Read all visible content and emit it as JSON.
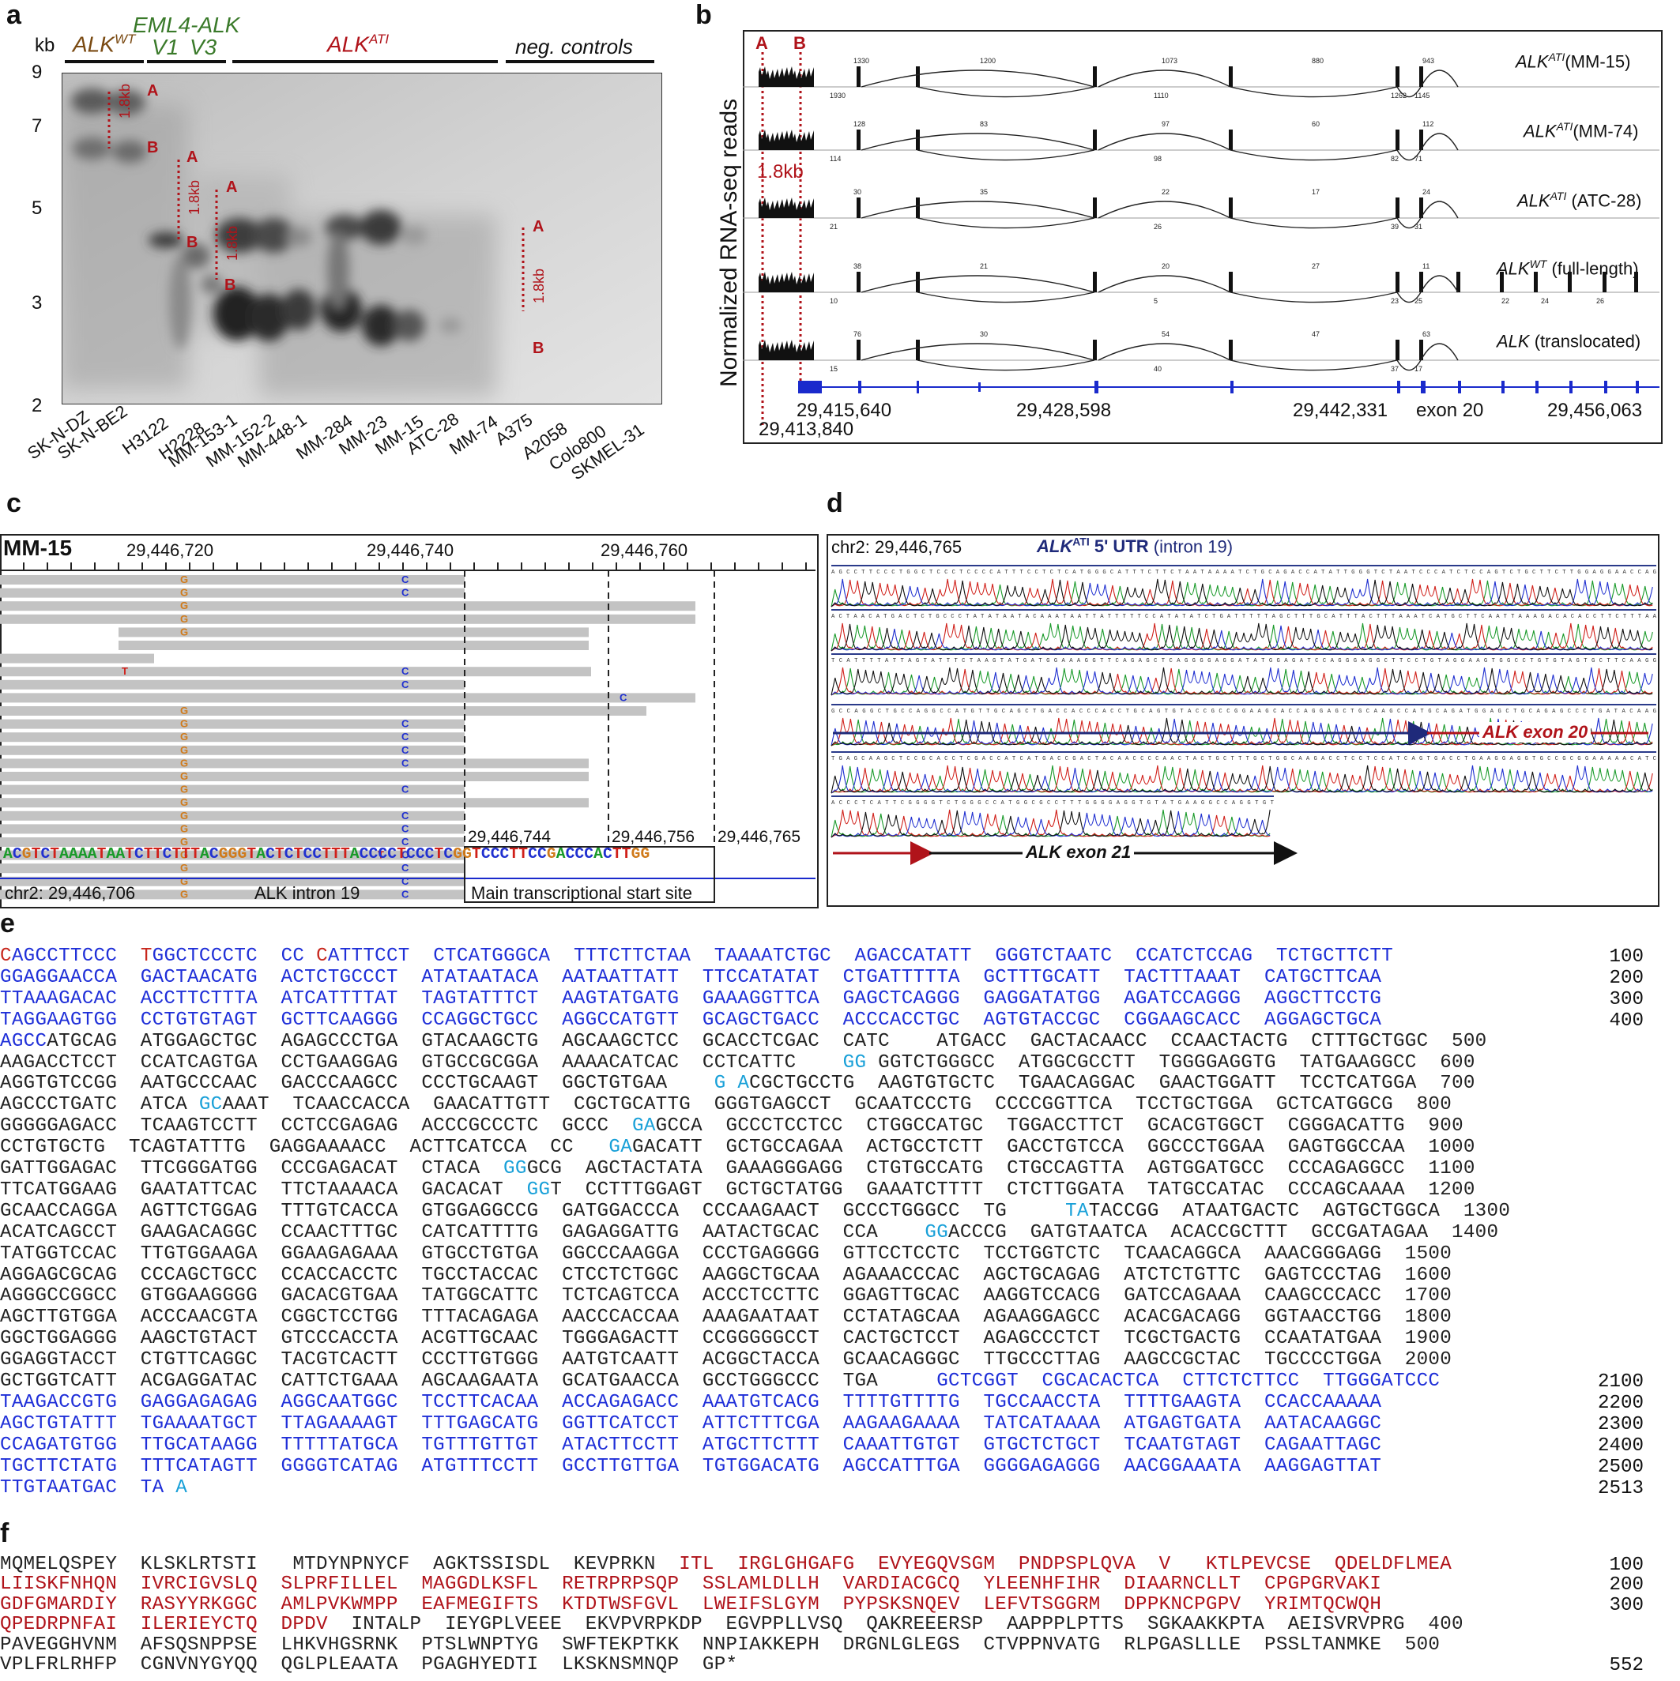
{
  "panels": {
    "a": {
      "label": "a",
      "yunit": "kb",
      "yticks": [
        "9",
        "7",
        "5",
        "3",
        "2"
      ],
      "groups": [
        "ALK",
        "WT",
        "EML4-ALK",
        "V1",
        "V3",
        "ALK",
        "ATI",
        "neg. controls"
      ],
      "lanes": [
        "SK-N-DZ",
        "SK-N-BE2",
        "H3122",
        "H2228",
        "MM-153-1",
        "MM-152-2",
        "MM-448-1",
        "MM-284",
        "MM-23",
        "MM-15",
        "ATC-28",
        "MM-74",
        "A375",
        "A2058",
        "Colo800",
        "SKMEL-31"
      ],
      "marks": [
        "A",
        "B",
        "1.8kb"
      ]
    },
    "b": {
      "label": "b",
      "ylabel": "Normalized RNA-seq reads",
      "marks": [
        "A",
        "B",
        "1.8kb"
      ],
      "tracks": [
        {
          "name": "ALK",
          "sup": "ATI",
          "rest": "(MM-15)",
          "junctions": [
            "1330",
            "1200",
            "1073",
            "880",
            "943",
            "1930",
            "1110",
            "1262",
            "1145"
          ]
        },
        {
          "name": "ALK",
          "sup": "ATI",
          "rest": "(MM-74)",
          "junctions": [
            "128",
            "83",
            "97",
            "60",
            "112",
            "114",
            "98",
            "82",
            "71"
          ]
        },
        {
          "name": "ALK",
          "sup": "ATI",
          "rest": " (ATC-28)",
          "junctions": [
            "30",
            "35",
            "22",
            "17",
            "24",
            "21",
            "26",
            "39",
            "31"
          ]
        },
        {
          "name": "ALK",
          "sup": "WT",
          "rest": " (full-length)",
          "junctions": [
            "38",
            "21",
            "20",
            "27",
            "11",
            "10",
            "5",
            "23",
            "25",
            "22",
            "24",
            "26"
          ]
        },
        {
          "name": "ALK",
          "sup": "",
          "rest": " (translocated)",
          "junctions": [
            "76",
            "30",
            "54",
            "47",
            "63",
            "15",
            "40",
            "37",
            "17"
          ]
        }
      ],
      "coords": [
        "29,415,640",
        "29,413,840",
        "29,428,598",
        "29,442,331",
        "exon 20",
        "29,456,063"
      ]
    },
    "c": {
      "label": "c",
      "sample": "MM-15",
      "coords": [
        "29,446,720",
        "29,446,740",
        "29,446,760"
      ],
      "tss": [
        "29,446,744",
        "29,446,756",
        "29,446,765"
      ],
      "refseq": "ACGTCTAAAATAATCTTCTTTACGGGTACTCTCCTTTACCCCTCCCTCGGTCCCTTCCGACCCACTTGG",
      "chr": "chr2: 29,446,706",
      "intron": "ALK intron 19",
      "tss_label": "Main transcriptional start site",
      "bases": {
        "g": "G",
        "c": "C",
        "t": "T"
      }
    },
    "d": {
      "label": "d",
      "chr": "chr2: 29,446,765",
      "utr": "ALK",
      "utr_sup": "ATI",
      "utr_rest": " 5' UTR",
      "utr_paren": "(intron 19)",
      "exon20": "ALK exon 20",
      "exon21": "ALK exon 21",
      "traces": [
        "AGCCTTCCCTGGCTCCCTCCCCATTTCCTCTCATGGGCATTTCTTCTAATAAAATCTGCAGACCATATTGGGTCTAATCCCATCTCCAGTCTGCTTCTTGGAGGAACCAG",
        "ACTAACATGACTCTGCCCTATATAATACAAATAATTATTTTTCCATATATCTGATTTTTAGCTTTGCATTTACTTTAAATCATGCTTCAATTAAAGACACACCTTCTTTAA",
        "TCATTTTATTAGTATTTCTAAGTATGATGGAAAGGTTCAGAGCTCAGGGGAGGATATGGAGATCCAGGGAGGCTTCCTGTAGGAAGTGGCCTGTGTAGTGCTTCAAGG",
        "GCCAGGCTGCCAGGCCATGTTGCAGCTGACCACCCACCTGCAGTGTACCGCCGGAAGCACCAGGAGCTGCAAGCCATGCAGATGGAGCTGCAGAGCCCTGATACAAG",
        "TGAGCAAGCTCCGCACCTCGACCATCATGACCGACTACAACCCCAACTACTGCTTTGCTGGCAAGACCTCCTCCATCAGTGACCTGAAGGAGGTGCCGCGGAAAAACATC",
        "ACCCTCATTCGGGGTCTGGGCCATGGCGCCTTTGGGGAGGTGTATGAAGGCCAGGTGT"
      ]
    },
    "e": {
      "label": "e",
      "lines": [
        {
          "segs": [
            [
              "r",
              "C"
            ],
            [
              "b",
              "A"
            ],
            [
              "b",
              "GCCTTCCC  "
            ],
            [
              "r",
              "T"
            ],
            [
              "b",
              "GGCTCCCTC  CC "
            ],
            [
              "r",
              "C"
            ],
            [
              "b",
              "ATTTCCT  CTCATGGGCA  TTTCTTCTAA  TAAAATCTGC  AGACCATATT  GGGTCTAATC  CCATCTCCAG  TCTGCTTCTT"
            ]
          ],
          "n": "100"
        },
        {
          "segs": [
            [
              "b",
              "GGAGGAACCA  GACTAACATG  ACTCTGCCCT  ATATAATACA  AATAATTATT  TTCCATATAT  CTGATTTTTA  GCTTTGCATT  TACTTTAAAT  CATGCTTCAA"
            ]
          ],
          "n": "200"
        },
        {
          "segs": [
            [
              "b",
              "TTAAAGACAC  ACCTTCTTTA  ATCATTTTAT  TAGTATTTCT  AAGTATGATG  GAAAGGTTCA  GAGCTCAGGG  GAGGATATGG  AGATCCAGGG  AGGCTTCCTG"
            ]
          ],
          "n": "300"
        },
        {
          "segs": [
            [
              "b",
              "TAGGAAGTGG  CCTGTGTAGT  GCTTCAAGGG  CCAGGCTGCC  AGGCCATGTT  GCAGCTGACC  ACCCACCTGC  AGTGTACCGC  CGGAAGCACC  AGGAGCTGCA"
            ]
          ],
          "n": "400"
        },
        {
          "segs": [
            [
              "b",
              "AGCC"
            ],
            [
              "k",
              "ATGCAG  ATGGAGCTGC  AGAGCCCTGA  GTACAAGCTG  AGCAAGCTCC  GCACCTCGAC  CATC    ATGACC  GACTACAACC  CCAACTACTG  CTTTGCTGGC  500"
            ]
          ],
          "n": ""
        },
        {
          "segs": [
            [
              "k",
              "AAGACCTCCT  CCATCAGTGA  CCTGAAGGAG  GTGCCGCGGA  AAAACATCAC  CCTCATTC    "
            ],
            [
              "c",
              "GG"
            ],
            [
              "k",
              " GGTCTGGGCC  ATGGCGCCTT  TGGGGAGGTG  TATGAAGGCC  600"
            ]
          ],
          "n": ""
        },
        {
          "segs": [
            [
              "k",
              "AGGTGTCCGG  AATGCCCAAC  GACCCAAGCC  CCCTGCAAGT  GGCTGTGAA    "
            ],
            [
              "c",
              "G A"
            ],
            [
              "k",
              "CGCTGCCTG  AAGTGTGCTC  TGAACAGGAC  GAACTGGATT  TCCTCATGGA  700"
            ]
          ],
          "n": ""
        },
        {
          "segs": [
            [
              "k",
              "AGCCCTGATC  ATCA "
            ],
            [
              "c",
              "GC"
            ],
            [
              "k",
              "AAAT  TCAACCACCA  GAACATTGTT  CGCTGCATTG  GGGTGAGCCT  GCAATCCCTG  CCCCGGTTCA  TCCTGCTGGA  GCTCATGGCG  800"
            ]
          ],
          "n": ""
        },
        {
          "segs": [
            [
              "k",
              "GGGGGAGACC  TCAAGTCCTT  CCTCCGAGAG  ACCCGCCCTC  GCCC  "
            ],
            [
              "c",
              "GA"
            ],
            [
              "k",
              "GCCA  GCCCTCCTCC  CTGGCCATGC  TGGACCTTCT  GCACGTGGCT  CGGGACATTG  900"
            ]
          ],
          "n": ""
        },
        {
          "segs": [
            [
              "k",
              "CCTGTGCTG  TCAGTATTTG  GAGGAAAACC  ACTTCATCCA  CC   "
            ],
            [
              "c",
              "GA"
            ],
            [
              "k",
              "GACATT  GCTGCCAGAA  ACTGCCTCTT  GACCTGTCCA  GGCCCTGGAA  GAGTGGCCAA  1000"
            ]
          ],
          "n": ""
        },
        {
          "segs": [
            [
              "k",
              "GATTGGAGAC  TTCGGGATGG  CCCGAGACAT  CTACA  "
            ],
            [
              "c",
              "GG"
            ],
            [
              "k",
              "GCG  AGCTACTATA  GAAAGGGAGG  CTGTGCCATG  CTGCCAGTTA  AGTGGATGCC  CCCAGAGGCC  1100"
            ]
          ],
          "n": ""
        },
        {
          "segs": [
            [
              "k",
              "TTCATGGAAG  GAATATTCAC  TTCTAAAACA  GACACAT  "
            ],
            [
              "c",
              "GG"
            ],
            [
              "k",
              "T  CCTTTGGAGT  GCTGCTATGG  GAAATCTTTT  CTCTTGGATA  TATGCCATAC  CCCAGCAAAA  1200"
            ]
          ],
          "n": ""
        },
        {
          "segs": [
            [
              "k",
              "GCAACCAGGA  AGTTCTGGAG  TTTGTCACCA  GTGGAGGCCG  GATGGACCCA  CCCAAGAACT  GCCCTGGGCC  TG     "
            ],
            [
              "c",
              "TA"
            ],
            [
              "k",
              "TACCGG  ATAATGACTC  AGTGCTGGCA  1300"
            ]
          ],
          "n": ""
        },
        {
          "segs": [
            [
              "k",
              "ACATCAGCCT  GAAGACAGGC  CCAACTTTGC  CATCATTTTG  GAGAGGATTG  AATACTGCAC  CCA    "
            ],
            [
              "c",
              "GG"
            ],
            [
              "k",
              "ACCCG  GATGTAATCA  ACACCGCTTT  GCCGATAGAA  1400"
            ]
          ],
          "n": ""
        },
        {
          "segs": [
            [
              "k",
              "TATGGTCCAC  TTGTGGAAGA  GGAAGAGAAA  GTGCCTGTGA  GGCCCAAGGA  CCCTGAGGGG  GTTCCTCCTC  TCCTGGTCTC  TCAACAGGCA  AAACGGGAGG  1500"
            ]
          ],
          "n": ""
        },
        {
          "segs": [
            [
              "k",
              "AGGAGCGCAG  CCCAGCTGCC  CCACCACCTC  TGCCTACCAC  CTCCTCTGGC  AAGGCTGCAA  AGAAACCCAC  AGCTGCAGAG  ATCTCTGTTC  GAGTCCCTAG  1600"
            ]
          ],
          "n": ""
        },
        {
          "segs": [
            [
              "k",
              "AGGGCCGGCC  GTGGAAGGGG  GACACGTGAA  TATGGCATTC  TCTCAGTCCA  ACCCTCCTTC  GGAGTTGCAC  AAGGTCCACG  GATCCAGAAA  CAAGCCCACC  1700"
            ]
          ],
          "n": ""
        },
        {
          "segs": [
            [
              "k",
              "AGCTTGTGGA  ACCCAACGTA  CGGCTCCTGG  TTTACAGAGA  AACCCACCAA  AAAGAATAAT  CCTATAGCAA  AGAAGGAGCC  ACACGACAGG  GGTAACCTGG  1800"
            ]
          ],
          "n": ""
        },
        {
          "segs": [
            [
              "k",
              "GGCTGGAGGG  AAGCTGTACT  GTCCCACCTA  ACGTTGCAAC  TGGGAGACTT  CCGGGGGCCT  CACTGCTCCT  AGAGCCCTCT  TCGCTGACTG  CCAATATGAA  1900"
            ]
          ],
          "n": ""
        },
        {
          "segs": [
            [
              "k",
              "GGAGGTACCT  CTGTTCAGGC  TACGTCACTT  CCCTTGTGGG  AATGTCAATT  ACGGCTACCA  GCAACAGGGC  TTGCCCTTAG  AAGCCGCTAC  TGCCCCTGGA  2000"
            ]
          ],
          "n": ""
        },
        {
          "segs": [
            [
              "k",
              "GCTGGTCATT  ACGAGGATAC  CATTCTGAAA  AGCAAGAATA  GCATGAACCA  GCCTGGGCCC  TGA     "
            ],
            [
              "b",
              "GCTCGGT  CGCACACTCA  CTTCTCTTCC  TTGGGATCCC"
            ]
          ],
          "n": "2100"
        },
        {
          "segs": [
            [
              "b",
              "TAAGACCGTG  GAGGAGAGAG  AGGCAATGGC  TCCTTCACAA  ACCAGAGACC  AAATGTCACG  TTTTGTTTTG  TGCCAACCTA  TTTTGAAGTA  CCACCAAAAA"
            ]
          ],
          "n": "2200"
        },
        {
          "segs": [
            [
              "b",
              "AGCTGTATTT  TGAAAATGCT  TTAGAAAAGT  TTTGAGCATG  GGTTCATCCT  ATTCTTTCGA  AAGAAGAAAA  TATCATAAAA  ATGAGTGATA  AATACAAGGC"
            ]
          ],
          "n": "2300"
        },
        {
          "segs": [
            [
              "b",
              "CCAGATGTGG  TTGCATAAGG  TTTTTATGCA  TGTTTGTTGT  ATACTTCCTT  ATGCTTCTTT  CAAATTGTGT  GTGCTCTGCT  TCAATGTAGT  CAGAATTAGC"
            ]
          ],
          "n": "2400"
        },
        {
          "segs": [
            [
              "b",
              "TGCTTCTATG  TTTCATAGTT  GGGGTCATAG  ATGTTTCCTT  GCCTTGTTGA  TGTGGACATG  AGCCATTTGA  GGGGAGAGGG  AACGGAAATA  AAGGAGTTAT"
            ]
          ],
          "n": "2500"
        },
        {
          "segs": [
            [
              "b",
              "TTGTAATGAC  TA "
            ],
            [
              "c",
              "A"
            ]
          ],
          "n": "2513"
        }
      ]
    },
    "f": {
      "label": "f",
      "lines": [
        {
          "segs": [
            [
              "k",
              "MQMELQSPEY  KLSKLRTSTI   MTDYNPNYCF  AGKTSSISDL  KEVPRKN  "
            ],
            [
              "dr",
              "ITL  IRGLGHGAFG  EVYEGQVSGM  PNDPSPLQVA  V   KTLPEVCSE  QDELDFLMEA"
            ]
          ],
          "n": "100"
        },
        {
          "segs": [
            [
              "dr",
              "LIISKFNHQN  IVRCIGVSLQ  SLPRFILLEL  MAGGDLKSFL  RETRPRPSQP  SSLAMLDLLH  VARDIACGCQ  YLEENHFIHR  DIAARNCLLT  CPGPGRVAKI"
            ]
          ],
          "n": "200"
        },
        {
          "segs": [
            [
              "dr",
              "GDFGMARDIY  RASYYRKGGC  AMLPVKWMPP  EAFMEGIFTS  KTDTWSFGVL  LWEIFSLGYM  PYPSKSNQEV  LEFVTSGGRM  DPPKNCPGPV  YRIMTQCWQH"
            ]
          ],
          "n": "300"
        },
        {
          "segs": [
            [
              "dr",
              "QPEDRPNFAI  ILERIEYCTQ  DPDV"
            ],
            [
              "k",
              "  INTALP  IEYGPLVEEE  EKVPVRPKDP  EGVPPLLVSQ  QAKREEERSP  AAPPPLPTTS  SGKAAKKPTA  AEISVRVPRG  400"
            ]
          ],
          "n": ""
        },
        {
          "segs": [
            [
              "k",
              "PAVEGGHVNM  AFSQSNPPSE  LHKVHGSRNK  PTSLWNPTYG  SWFTEKPTKK  NNPIAKKEPH  DRGNLGLEGS  CTVPPNVATG  RLPGASLLLE  PSSLTANMKE  500"
            ]
          ],
          "n": ""
        },
        {
          "segs": [
            [
              "k",
              "VPLFRLRHFP  CGNVNYGYQQ  QGLPLEAATA  PGAGHYEDTI  LKSKNSMNQP  GP*"
            ]
          ],
          "n": "552"
        }
      ]
    }
  }
}
